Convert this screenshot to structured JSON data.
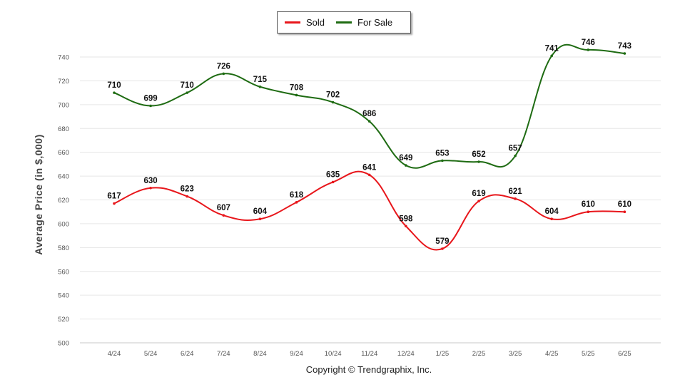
{
  "chart_data": {
    "type": "line",
    "categories": [
      "4/24",
      "5/24",
      "6/24",
      "7/24",
      "8/24",
      "9/24",
      "10/24",
      "11/24",
      "12/24",
      "1/25",
      "2/25",
      "3/25",
      "4/25",
      "5/25",
      "6/25"
    ],
    "series": [
      {
        "name": "Sold",
        "color": "#e8161b",
        "values": [
          617,
          630,
          623,
          607,
          604,
          618,
          635,
          641,
          598,
          579,
          619,
          621,
          604,
          610,
          610
        ]
      },
      {
        "name": "For Sale",
        "color": "#1e6b12",
        "values": [
          710,
          699,
          710,
          726,
          715,
          708,
          702,
          686,
          649,
          653,
          652,
          657,
          741,
          746,
          743
        ]
      }
    ],
    "ylabel": "Average Price (in $,000)",
    "ylim": [
      500,
      750
    ],
    "yticks": [
      500,
      520,
      540,
      560,
      580,
      600,
      620,
      640,
      660,
      680,
      700,
      720,
      740
    ],
    "grid": true,
    "legend_position": "top-center"
  },
  "footer": {
    "copyright": "Copyright © Trendgraphix, Inc."
  }
}
